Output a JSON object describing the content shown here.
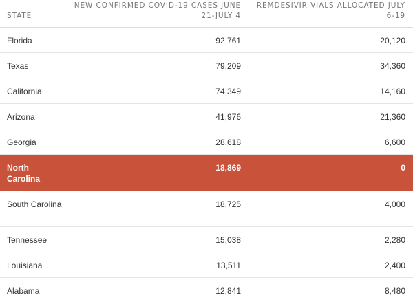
{
  "table": {
    "headers": {
      "state": "STATE",
      "cases": "NEW CONFIRMED COVID-19 CASES JUNE 21-JULY 4",
      "vials": "REMDESIVIR VIALS ALLOCATED JULY 6-19"
    },
    "rows": [
      {
        "state": "Florida",
        "cases": "92,761",
        "vials": "20,120"
      },
      {
        "state": "Texas",
        "cases": "79,209",
        "vials": "34,360"
      },
      {
        "state": "California",
        "cases": "74,349",
        "vials": "14,160"
      },
      {
        "state": "Arizona",
        "cases": "41,976",
        "vials": "21,360"
      },
      {
        "state": "Georgia",
        "cases": "28,618",
        "vials": "6,600"
      },
      {
        "state": "North Carolina",
        "cases": "18,869",
        "vials": "0",
        "highlighted": true
      },
      {
        "state": "South Carolina",
        "cases": "18,725",
        "vials": "4,000"
      },
      {
        "state": "Tennessee",
        "cases": "15,038",
        "vials": "2,280"
      },
      {
        "state": "Louisiana",
        "cases": "13,511",
        "vials": "2,400"
      },
      {
        "state": "Alabama",
        "cases": "12,841",
        "vials": "8,480"
      }
    ]
  },
  "colors": {
    "highlight_row": "#c8533a",
    "header_text": "#777777",
    "body_text": "#333333"
  }
}
